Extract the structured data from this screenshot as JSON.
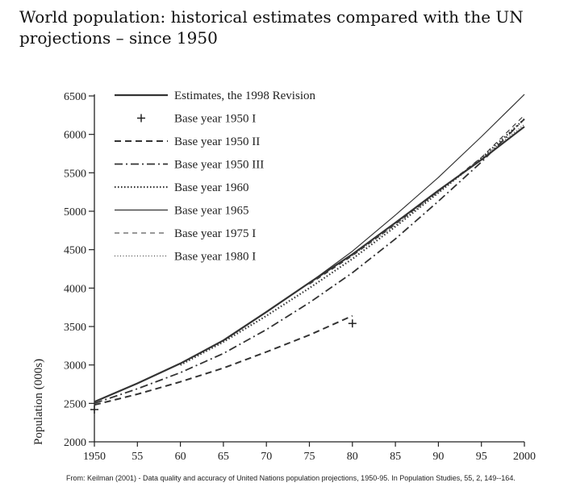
{
  "chart_data": {
    "type": "line",
    "title": "World population: historical estimates compared with the UN projections – since 1950",
    "ylabel": "Population (000s)",
    "xlabel": "",
    "xlim": [
      1950,
      2000
    ],
    "ylim": [
      2000,
      6500
    ],
    "xticks": [
      1950,
      1955,
      1960,
      1965,
      1970,
      1975,
      1980,
      1985,
      1990,
      1995,
      2000
    ],
    "xtick_labels": [
      "1950",
      "55",
      "60",
      "65",
      "70",
      "75",
      "80",
      "85",
      "90",
      "95",
      "2000"
    ],
    "yticks": [
      2000,
      2500,
      3000,
      3500,
      4000,
      4500,
      5000,
      5500,
      6000,
      6500
    ],
    "legend_position": "top-left",
    "series": [
      {
        "name": "Estimates, the 1998 Revision",
        "style": "solid-thick",
        "x": [
          1950,
          1955,
          1960,
          1965,
          1970,
          1975,
          1980,
          1985,
          1990,
          1995,
          2000
        ],
        "y": [
          2520,
          2760,
          3020,
          3320,
          3690,
          4070,
          4440,
          4850,
          5270,
          5670,
          6100
        ]
      },
      {
        "name": "Base year 1950 I",
        "style": "markers-plus",
        "x": [
          1950,
          1980
        ],
        "y": [
          2420,
          3540
        ]
      },
      {
        "name": "Base year 1950 II",
        "style": "dashed-thick",
        "x": [
          1950,
          1955,
          1960,
          1965,
          1970,
          1975,
          1980
        ],
        "y": [
          2480,
          2620,
          2780,
          2960,
          3170,
          3390,
          3640
        ]
      },
      {
        "name": "Base year 1950 III",
        "style": "dashdot",
        "x": [
          1950,
          1955,
          1960,
          1965,
          1970,
          1975,
          1980,
          1985,
          1990,
          1995,
          2000
        ],
        "y": [
          2500,
          2690,
          2900,
          3150,
          3460,
          3810,
          4200,
          4640,
          5130,
          5640,
          6200
        ]
      },
      {
        "name": "Base year 1960",
        "style": "dotted-thick",
        "x": [
          1960,
          1965,
          1970,
          1975,
          1980,
          1985,
          1990,
          1995,
          2000
        ],
        "y": [
          3000,
          3300,
          3640,
          4000,
          4380,
          4800,
          5240,
          5690,
          6200
        ]
      },
      {
        "name": "Base year 1965",
        "style": "solid-thin",
        "x": [
          1965,
          1970,
          1975,
          1980,
          1985,
          1990,
          1995,
          2000
        ],
        "y": [
          3320,
          3690,
          4070,
          4480,
          4950,
          5440,
          5970,
          6520
        ]
      },
      {
        "name": "Base year 1975 I",
        "style": "dashed-thin",
        "x": [
          1975,
          1980,
          1985,
          1990,
          1995,
          2000
        ],
        "y": [
          4050,
          4420,
          4830,
          5260,
          5700,
          6250
        ]
      },
      {
        "name": "Base year 1980 I",
        "style": "dotted-thin",
        "x": [
          1980,
          1985,
          1990,
          1995,
          2000
        ],
        "y": [
          4420,
          4820,
          5250,
          5690,
          6130
        ]
      }
    ]
  },
  "source": "From: Keilman (2001) - Data quality and accuracy of United Nations population projections, 1950-95. In Population Studies, 55, 2, 149--164."
}
